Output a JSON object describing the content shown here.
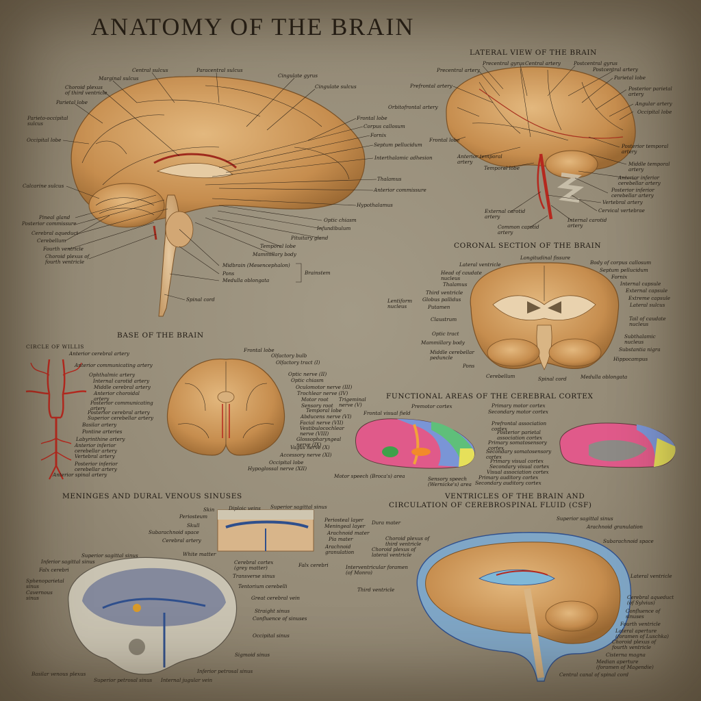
{
  "title": "ANATOMY OF THE BRAIN",
  "colors": {
    "paper": "#9a907c",
    "brain": "#c8904f",
    "brain_light": "#e0b57c",
    "artery": "#b5281e",
    "vein": "#2f4f8c",
    "bone": "#cfc6b0"
  },
  "sections": {
    "lateral": "LATERAL VIEW OF THE BRAIN",
    "coronal": "CORONAL SECTION OF THE BRAIN",
    "base": "BASE OF THE BRAIN",
    "willis": "CIRCLE OF WILLIS",
    "functional": "FUNCTIONAL AREAS OF THE CEREBRAL CORTEX",
    "meninges": "MENINGES AND DURAL VENOUS SINUSES",
    "ventricles_1": "VENTRICLES OF THE BRAIN AND",
    "ventricles_2": "CIRCULATION OF CEREBROSPINAL FLUID (CSF)"
  },
  "sagittal": {
    "central_sulcus": "Central sulcus",
    "paracentral_sulcus": "Paracentral sulcus",
    "marginal_sulcus": "Marginal sulcus",
    "cingulate_gyrus": "Cingulate gyrus",
    "cingulate_sulcus": "Cingulate sulcus",
    "choroid_third_1": "Choroid plexus",
    "choroid_third_2": "of third ventricle",
    "parietal_lobe": "Parietal lobe",
    "parieto_occipital_1": "Parieto-occipital",
    "parieto_occipital_2": "sulcus",
    "occipital_lobe": "Occipital lobe",
    "frontal_lobe": "Frontal lobe",
    "corpus_callosum": "Corpus callosum",
    "fornix": "Fornix",
    "septum": "Septum pellucidum",
    "interthalamic": "Interthalamic adhesion",
    "thalamus": "Thalamus",
    "anterior_commissure": "Anterior commissure",
    "hypothalamus": "Hypothalamus",
    "calcarine": "Calcarine sulcus",
    "pineal": "Pineal gland",
    "posterior_commissure": "Posterior commissure",
    "cerebral_aqueduct": "Cerebral aqueduct",
    "cerebellum": "Cerebellum",
    "fourth_ventricle": "Fourth ventricle",
    "choroid_fourth_1": "Choroid plexus of",
    "choroid_fourth_2": "fourth ventricle",
    "optic_chiasm": "Optic chiasm",
    "infundibulum": "Infundibulum",
    "pituitary": "Pituitary gland",
    "temporal_lobe": "Temporal lobe",
    "mammillary": "Mammillary body",
    "midbrain": "Midbrain (Mesencephalon)",
    "pons": "Pons",
    "medulla": "Medulla oblongata",
    "brainstem": "Brainstem",
    "spinal_cord": "Spinal cord"
  },
  "lateral": {
    "precentral_gyrus": "Precentral gyrus",
    "central_artery": "Central artery",
    "postcentral_gyrus": "Postcentral gyrus",
    "precentral_artery": "Precentral artery",
    "postcentral_artery": "Postcentral artery",
    "parietal_lobe": "Parietal lobe",
    "prefrontal_artery": "Prefrontal artery",
    "posterior_parietal_1": "Posterior parietal",
    "posterior_parietal_2": "artery",
    "angular_artery": "Angular artery",
    "occipital_lobe": "Occipital lobe",
    "orbitofrontal_artery": "Orbitofrontal artery",
    "frontal_lobe": "Frontal lobe",
    "posterior_temporal_1": "Posterior temporal",
    "posterior_temporal_2": "artery",
    "anterior_temporal_1": "Anterior temporal",
    "anterior_temporal_2": "artery",
    "middle_temporal_1": "Middle temporal",
    "middle_temporal_2": "artery",
    "temporal_lobe": "Temporal lobe",
    "aica_1": "Anterior inferior",
    "aica_2": "cerebellar artery",
    "pica_1": "Posterior inferior",
    "pica_2": "cerebellar artery",
    "vertebral_artery": "Vertebral artery",
    "cervical_vertebrae": "Cervical vertebrae",
    "external_carotid_1": "External carotid",
    "external_carotid_2": "artery",
    "internal_carotid_1": "Internal carotid",
    "internal_carotid_2": "artery",
    "common_carotid_1": "Common carotid",
    "common_carotid_2": "artery"
  },
  "coronal": {
    "longitudinal_fissure": "Longitudinal fissure",
    "lateral_ventricle": "Lateral ventricle",
    "body_corpus": "Body of corpus callosum",
    "caudate_head_1": "Head of caudate",
    "caudate_head_2": "nucleus",
    "septum": "Septum pellucidum",
    "fornix": "Fornix",
    "thalamus": "Thalamus",
    "internal_capsule": "Internal capsule",
    "third_ventricle": "Third ventricle",
    "external_capsule": "External capsule",
    "lentiform_1": "Lentiform",
    "lentiform_2": "nucleus",
    "globus": "Globus pallidus",
    "extreme_capsule": "Extreme capsule",
    "putamen": "Putamen",
    "lateral_sulcus": "Lateral sulcus",
    "claustrum": "Claustrum",
    "tail_caudate_1": "Tail of caudate",
    "tail_caudate_2": "nucleus",
    "optic_tract": "Optic tract",
    "subthalamic_1": "Subthalamic",
    "subthalamic_2": "nucleus",
    "mammillary": "Mammillary body",
    "substantia": "Substantia nigra",
    "mcp_1": "Middle cerebellar",
    "mcp_2": "peduncle",
    "hippocampus": "Hippocampus",
    "pons": "Pons",
    "cerebellum": "Cerebellum",
    "spinal_cord": "Spinal cord",
    "medulla": "Medulla oblongata"
  },
  "willis": {
    "aca": "Anterior cerebral artery",
    "acom": "Anterior communicating artery",
    "ophthalmic": "Ophthalmic artery",
    "ica": "Internal carotid artery",
    "mca": "Middle cerebral artery",
    "achor_1": "Anterior choroidal",
    "achor_2": "artery",
    "pcom_1": "Posterior communicating",
    "pcom_2": "artery",
    "pca": "Posterior cerebral artery",
    "sca": "Superior cerebellar artery",
    "basilar": "Basilar artery",
    "pontine": "Pontine arteries",
    "labyrinthine": "Labyrinthine artery",
    "aica_1": "Anterior inferior",
    "aica_2": "cerebellar artery",
    "vertebral": "Vertebral artery",
    "pica_1": "Posterior inferior",
    "pica_2": "cerebellar artery",
    "asa": "Anterior spinal artery"
  },
  "base": {
    "frontal_lobe": "Frontal lobe",
    "olfactory_bulb": "Olfactory bulb",
    "olfactory_tract": "Olfactory tract (I)",
    "optic_nerve": "Optic nerve (II)",
    "optic_chiasm": "Optic chiasm",
    "oculomotor": "Oculomotor nerve (III)",
    "trochlear": "Trochlear nerve (IV)",
    "motor_root": "Motor root",
    "sensory_root": "Sensory root",
    "trigeminal_1": "Trigeminal",
    "trigeminal_2": "nerve (V)",
    "temporal_lobe": "Temporal lobe",
    "abducens": "Abducens nerve (VI)",
    "facial": "Facial nerve (VII)",
    "vestibulocochlear_1": "Vestibulocochlear",
    "vestibulocochlear_2": "nerve (VIII)",
    "glossopharyngeal_1": "Glossopharyngeal",
    "glossopharyngeal_2": "nerve (IX)",
    "vagus": "Vagus nerve (X)",
    "accessory": "Accessory nerve (XI)",
    "occipital_lobe": "Occipital lobe",
    "hypoglossal": "Hypoglossal nerve (XII)"
  },
  "functional": {
    "premotor": "Premotor cortex",
    "primary_motor": "Primary motor cortex",
    "secondary_motor": "Secondary motor cortex",
    "frontal_visual": "Frontal visual field",
    "prefrontal_1": "Prefrontal association",
    "prefrontal_2": "cortex",
    "post_parietal_1": "Posterior parietal",
    "post_parietal_2": "association cortex",
    "primary_somato_1": "Primary somatosensory",
    "primary_somato_2": "cortex",
    "secondary_somato_1": "Secondary somatosensory",
    "secondary_somato_2": "cortex",
    "primary_visual": "Primary visual cortex",
    "secondary_visual": "Secondary visual cortex",
    "visual_assoc": "Visual association cortex",
    "primary_auditory": "Primary auditory cortex",
    "secondary_auditory": "Secondary auditory cortex",
    "broca": "Motor speech (Broca's) area",
    "wernicke_1": "Sensory speech",
    "wernicke_2": "(Wernicke's) area"
  },
  "meninges": {
    "skin": "Skin",
    "diploic": "Diploic veins",
    "superior_sagittal": "Superior sagittal sinus",
    "periosteum": "Periosteum",
    "skull": "Skull",
    "periosteal": "Periosteal layer",
    "meningeal": "Meningeal layer",
    "dura": "Dura mater",
    "subarachnoid": "Subarachnoid space",
    "arachnoid": "Arachnoid mater",
    "cerebral_artery": "Cerebral artery",
    "pia": "Pia mater",
    "arach_gran_1": "Arachnoid",
    "arach_gran_2": "granulation",
    "white_matter": "White matter",
    "cortex_1": "Cerebral cortex",
    "cortex_2": "(grey matter)",
    "falx": "Falx cerebri",
    "sss": "Superior sagittal sinus",
    "iss": "Inferior sagittal sinus",
    "falx2": "Falx cerebri",
    "spheno_1": "Sphenoparietal",
    "spheno_2": "sinus",
    "cavernous_1": "Cavernous",
    "cavernous_2": "sinus",
    "transverse": "Transverse sinus",
    "tentorium": "Tentorium cerebelli",
    "great_vein": "Great cerebral vein",
    "straight": "Straight sinus",
    "confluence": "Confluence of sinuses",
    "occipital_sinus": "Occipital sinus",
    "sigmoid": "Sigmoid sinus",
    "inferior_petrosal": "Inferior petrosal sinus",
    "basilar_plexus": "Basilar venous plexus",
    "superior_petrosal": "Superior petrosal sinus",
    "ijv": "Internal jugular vein"
  },
  "ventricles": {
    "sss": "Superior sagittal sinus",
    "arach_gran": "Arachnoid granulation",
    "choroid_third_1": "Choroid plexus of",
    "choroid_third_2": "third ventricle",
    "subarachnoid": "Subarachnoid space",
    "choroid_lat_1": "Choroid plexus of",
    "choroid_lat_2": "lateral ventricle",
    "ivf_1": "Interventricular foramen",
    "ivf_2": "(of Monro)",
    "lateral_ventricle": "Lateral ventricle",
    "third_ventricle": "Third ventricle",
    "aqueduct_1": "Cerebral aqueduct",
    "aqueduct_2": "(of Sylvius)",
    "confluence_1": "Confluence of",
    "confluence_2": "sinuses",
    "fourth": "Fourth ventricle",
    "lat_aperture_1": "Lateral aperture",
    "lat_aperture_2": "(foramen of Luschka)",
    "choroid_fourth_1": "Choroid plexus of",
    "choroid_fourth_2": "fourth ventricle",
    "cisterna": "Cisterna magna",
    "median_1": "Median aperture",
    "median_2": "(foramen of Magendie)",
    "central_canal": "Central canal of spinal cord"
  }
}
